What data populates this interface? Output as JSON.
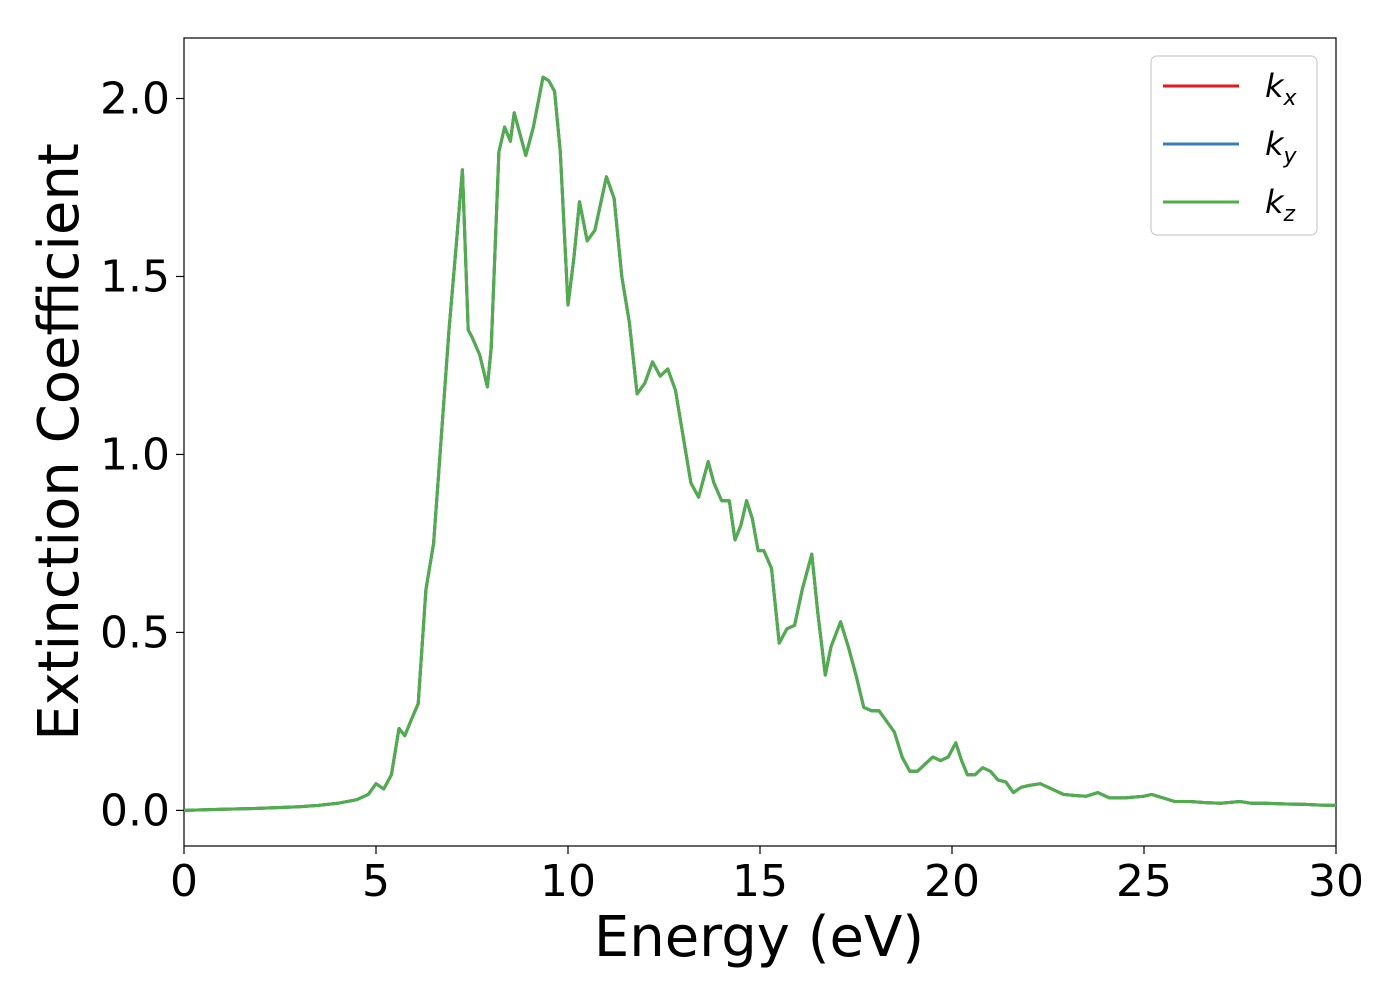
{
  "chart_data": {
    "type": "line",
    "title": "",
    "xlabel": "Energy (eV)",
    "ylabel": "Extinction Coefficient",
    "xlim": [
      0,
      30
    ],
    "ylim": [
      -0.1,
      2.17
    ],
    "xticks": [
      0,
      5,
      10,
      15,
      20,
      25,
      30
    ],
    "xtick_labels": [
      "0",
      "5",
      "10",
      "15",
      "20",
      "25",
      "30"
    ],
    "yticks": [
      0.0,
      0.5,
      1.0,
      1.5,
      2.0
    ],
    "ytick_labels": [
      "0.0",
      "0.5",
      "1.0",
      "1.5",
      "2.0"
    ],
    "grid": false,
    "legend_position": "top-right",
    "x": [
      0,
      1,
      2,
      3,
      3.5,
      4,
      4.5,
      4.8,
      5.0,
      5.2,
      5.4,
      5.6,
      5.75,
      5.9,
      6.1,
      6.3,
      6.5,
      6.7,
      6.9,
      7.1,
      7.25,
      7.4,
      7.5,
      7.7,
      7.9,
      8.0,
      8.2,
      8.35,
      8.5,
      8.6,
      8.75,
      8.9,
      9.1,
      9.35,
      9.5,
      9.65,
      9.8,
      10.0,
      10.15,
      10.3,
      10.5,
      10.7,
      11.0,
      11.2,
      11.4,
      11.6,
      11.8,
      12.0,
      12.2,
      12.4,
      12.6,
      12.8,
      13.0,
      13.2,
      13.4,
      13.65,
      13.8,
      14.0,
      14.2,
      14.35,
      14.5,
      14.65,
      14.8,
      14.95,
      15.1,
      15.3,
      15.5,
      15.7,
      15.9,
      16.1,
      16.35,
      16.5,
      16.7,
      16.85,
      17.1,
      17.3,
      17.5,
      17.7,
      17.9,
      18.1,
      18.3,
      18.5,
      18.7,
      18.9,
      19.1,
      19.3,
      19.5,
      19.7,
      19.9,
      20.1,
      20.25,
      20.4,
      20.6,
      20.8,
      21.0,
      21.2,
      21.4,
      21.6,
      21.8,
      22.0,
      22.3,
      22.6,
      22.9,
      23.2,
      23.5,
      23.8,
      24.1,
      24.5,
      25.0,
      25.2,
      25.5,
      25.8,
      26.2,
      26.6,
      27.0,
      27.5,
      27.8,
      28.2,
      28.7,
      29.2,
      29.6,
      30.0
    ],
    "series": [
      {
        "name": "kx",
        "color": "#e41a1c",
        "values": [
          0.0,
          0.003,
          0.006,
          0.01,
          0.014,
          0.02,
          0.03,
          0.045,
          0.075,
          0.06,
          0.1,
          0.23,
          0.21,
          0.25,
          0.3,
          0.62,
          0.75,
          1.05,
          1.35,
          1.6,
          1.8,
          1.35,
          1.33,
          1.28,
          1.19,
          1.3,
          1.85,
          1.92,
          1.88,
          1.96,
          1.9,
          1.84,
          1.92,
          2.06,
          2.05,
          2.02,
          1.85,
          1.42,
          1.55,
          1.71,
          1.6,
          1.63,
          1.78,
          1.72,
          1.5,
          1.37,
          1.17,
          1.2,
          1.26,
          1.22,
          1.24,
          1.18,
          1.05,
          0.92,
          0.88,
          0.98,
          0.92,
          0.87,
          0.87,
          0.76,
          0.8,
          0.87,
          0.82,
          0.73,
          0.73,
          0.68,
          0.47,
          0.51,
          0.52,
          0.62,
          0.72,
          0.56,
          0.38,
          0.46,
          0.53,
          0.46,
          0.38,
          0.29,
          0.28,
          0.28,
          0.25,
          0.22,
          0.15,
          0.11,
          0.11,
          0.13,
          0.15,
          0.14,
          0.15,
          0.19,
          0.14,
          0.1,
          0.1,
          0.12,
          0.11,
          0.085,
          0.08,
          0.05,
          0.065,
          0.07,
          0.075,
          0.06,
          0.045,
          0.042,
          0.04,
          0.05,
          0.035,
          0.035,
          0.04,
          0.045,
          0.035,
          0.025,
          0.025,
          0.022,
          0.02,
          0.025,
          0.02,
          0.02,
          0.018,
          0.017,
          0.015,
          0.014
        ]
      },
      {
        "name": "ky",
        "color": "#377eb8",
        "values": [
          0.0,
          0.003,
          0.006,
          0.01,
          0.014,
          0.02,
          0.03,
          0.045,
          0.075,
          0.06,
          0.1,
          0.23,
          0.21,
          0.25,
          0.3,
          0.62,
          0.75,
          1.05,
          1.35,
          1.6,
          1.8,
          1.35,
          1.33,
          1.28,
          1.19,
          1.3,
          1.85,
          1.92,
          1.88,
          1.96,
          1.9,
          1.84,
          1.92,
          2.06,
          2.05,
          2.02,
          1.85,
          1.42,
          1.55,
          1.71,
          1.6,
          1.63,
          1.78,
          1.72,
          1.5,
          1.37,
          1.17,
          1.2,
          1.26,
          1.22,
          1.24,
          1.18,
          1.05,
          0.92,
          0.88,
          0.98,
          0.92,
          0.87,
          0.87,
          0.76,
          0.8,
          0.87,
          0.82,
          0.73,
          0.73,
          0.68,
          0.47,
          0.51,
          0.52,
          0.62,
          0.72,
          0.56,
          0.38,
          0.46,
          0.53,
          0.46,
          0.38,
          0.29,
          0.28,
          0.28,
          0.25,
          0.22,
          0.15,
          0.11,
          0.11,
          0.13,
          0.15,
          0.14,
          0.15,
          0.19,
          0.14,
          0.1,
          0.1,
          0.12,
          0.11,
          0.085,
          0.08,
          0.05,
          0.065,
          0.07,
          0.075,
          0.06,
          0.045,
          0.042,
          0.04,
          0.05,
          0.035,
          0.035,
          0.04,
          0.045,
          0.035,
          0.025,
          0.025,
          0.022,
          0.02,
          0.025,
          0.02,
          0.02,
          0.018,
          0.017,
          0.015,
          0.014
        ]
      },
      {
        "name": "kz",
        "color": "#4daf4a",
        "values": [
          0.0,
          0.003,
          0.006,
          0.01,
          0.014,
          0.02,
          0.03,
          0.045,
          0.075,
          0.06,
          0.1,
          0.23,
          0.21,
          0.25,
          0.3,
          0.62,
          0.75,
          1.05,
          1.35,
          1.6,
          1.8,
          1.35,
          1.33,
          1.28,
          1.19,
          1.3,
          1.85,
          1.92,
          1.88,
          1.96,
          1.9,
          1.84,
          1.92,
          2.06,
          2.05,
          2.02,
          1.85,
          1.42,
          1.55,
          1.71,
          1.6,
          1.63,
          1.78,
          1.72,
          1.5,
          1.37,
          1.17,
          1.2,
          1.26,
          1.22,
          1.24,
          1.18,
          1.05,
          0.92,
          0.88,
          0.98,
          0.92,
          0.87,
          0.87,
          0.76,
          0.8,
          0.87,
          0.82,
          0.73,
          0.73,
          0.68,
          0.47,
          0.51,
          0.52,
          0.62,
          0.72,
          0.56,
          0.38,
          0.46,
          0.53,
          0.46,
          0.38,
          0.29,
          0.28,
          0.28,
          0.25,
          0.22,
          0.15,
          0.11,
          0.11,
          0.13,
          0.15,
          0.14,
          0.15,
          0.19,
          0.14,
          0.1,
          0.1,
          0.12,
          0.11,
          0.085,
          0.08,
          0.05,
          0.065,
          0.07,
          0.075,
          0.06,
          0.045,
          0.042,
          0.04,
          0.05,
          0.035,
          0.035,
          0.04,
          0.045,
          0.035,
          0.025,
          0.025,
          0.022,
          0.02,
          0.025,
          0.02,
          0.02,
          0.018,
          0.017,
          0.015,
          0.014
        ]
      }
    ],
    "legend": [
      {
        "base": "k",
        "sub": "x",
        "color": "#e41a1c"
      },
      {
        "base": "k",
        "sub": "y",
        "color": "#377eb8"
      },
      {
        "base": "k",
        "sub": "z",
        "color": "#4daf4a"
      }
    ]
  }
}
